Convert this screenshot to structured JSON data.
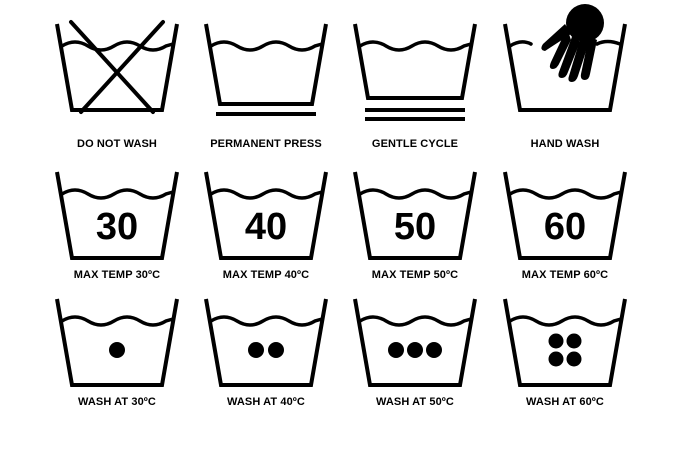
{
  "symbols": {
    "row1": [
      {
        "id": "do-not-wash",
        "label": "DO NOT WASH"
      },
      {
        "id": "permanent-press",
        "label": "PERMANENT PRESS"
      },
      {
        "id": "gentle-cycle",
        "label": "GENTLE CYCLE"
      },
      {
        "id": "hand-wash",
        "label": "HAND WASH"
      }
    ],
    "row2": [
      {
        "id": "max-temp-30",
        "label": "MAX TEMP 30ºC",
        "temp": "30"
      },
      {
        "id": "max-temp-40",
        "label": "MAX TEMP 40ºC",
        "temp": "40"
      },
      {
        "id": "max-temp-50",
        "label": "MAX TEMP 50ºC",
        "temp": "50"
      },
      {
        "id": "max-temp-60",
        "label": "MAX TEMP 60ºC",
        "temp": "60"
      }
    ],
    "row3": [
      {
        "id": "wash-at-30",
        "label": "WASH AT 30ºC",
        "dots": 1
      },
      {
        "id": "wash-at-40",
        "label": "WASH AT 40ºC",
        "dots": 2
      },
      {
        "id": "wash-at-50",
        "label": "WASH AT 50ºC",
        "dots": 3
      },
      {
        "id": "wash-at-60",
        "label": "WASH AT 60ºC",
        "dots": 4
      }
    ]
  }
}
